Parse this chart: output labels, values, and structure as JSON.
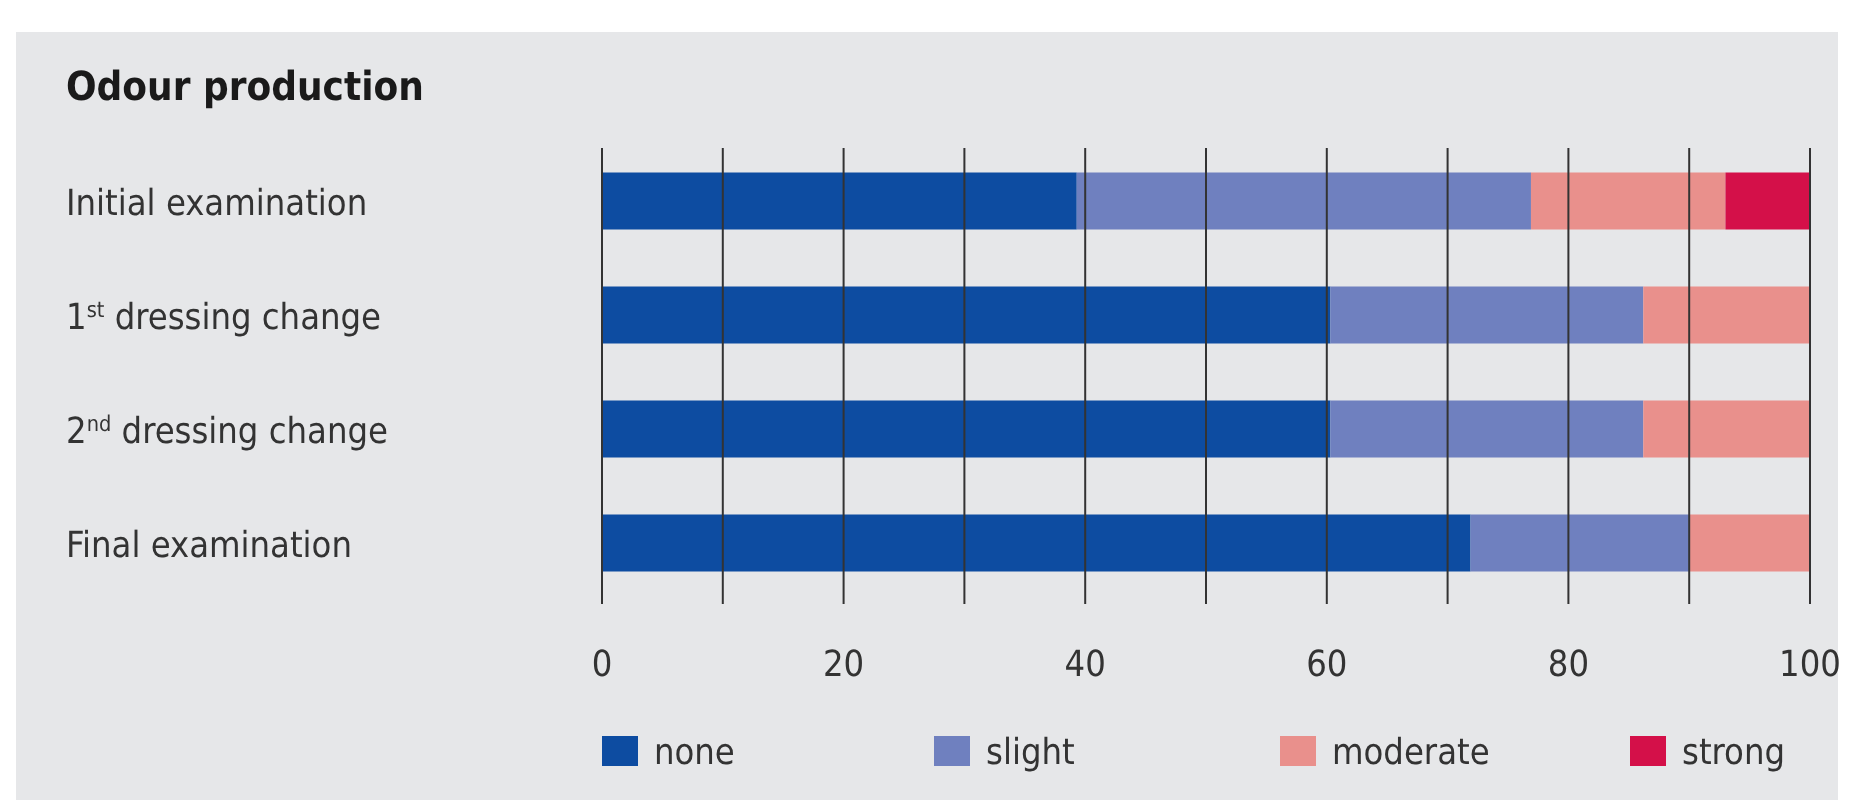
{
  "chart_data": {
    "type": "bar",
    "orientation": "horizontal",
    "stacked": true,
    "title": "Odour production",
    "categories": [
      "Initial examination",
      "1$^{st}$ dressing change",
      "2$^{nd}$ dressing change",
      "Final examination"
    ],
    "series": [
      {
        "name": "none",
        "color": "#0d4ca1",
        "values": [
          39.3,
          60.3,
          60.3,
          71.9
        ]
      },
      {
        "name": "slight",
        "color": "#6f80bf",
        "values": [
          37.6,
          25.9,
          25.9,
          18.1
        ]
      },
      {
        "name": "moderate",
        "color": "#e9908c",
        "values": [
          16.1,
          13.8,
          13.8,
          10.0
        ]
      },
      {
        "name": "strong",
        "color": "#d41049",
        "values": [
          7.0,
          0,
          0,
          0
        ]
      }
    ],
    "xlim": [
      0,
      100
    ],
    "xticks": [
      0,
      {
        "value": 10,
        "label": null
      },
      20,
      {
        "value": 30,
        "label": null
      },
      40,
      {
        "value": 50,
        "label": null
      },
      60,
      {
        "value": 70,
        "label": null
      },
      80,
      {
        "value": 90,
        "label": null
      },
      100
    ],
    "grid": "x",
    "legend": "bottom"
  }
}
